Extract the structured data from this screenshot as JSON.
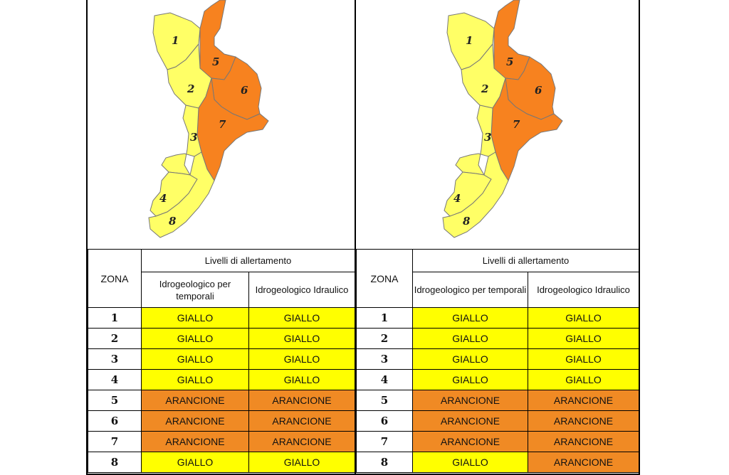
{
  "colors": {
    "giallo": "#ffff00",
    "arancione": "#f08a24",
    "map_yellow": "#ffff66",
    "map_orange": "#f7821f"
  },
  "panels": [
    {
      "header": {
        "zona": "ZONA",
        "livelli": "Livelli di allertamento",
        "col1": "Idrogeologico per temporali",
        "col2": "Idrogeologico Idraulico"
      },
      "map_zones": [
        "1",
        "2",
        "3",
        "4",
        "5",
        "6",
        "7",
        "8"
      ],
      "rows": [
        {
          "zona": "1",
          "temporali": "GIALLO",
          "idraulico": "GIALLO"
        },
        {
          "zona": "2",
          "temporali": "GIALLO",
          "idraulico": "GIALLO"
        },
        {
          "zona": "3",
          "temporali": "GIALLO",
          "idraulico": "GIALLO"
        },
        {
          "zona": "4",
          "temporali": "GIALLO",
          "idraulico": "GIALLO"
        },
        {
          "zona": "5",
          "temporali": "ARANCIONE",
          "idraulico": "ARANCIONE"
        },
        {
          "zona": "6",
          "temporali": "ARANCIONE",
          "idraulico": "ARANCIONE"
        },
        {
          "zona": "7",
          "temporali": "ARANCIONE",
          "idraulico": "ARANCIONE"
        },
        {
          "zona": "8",
          "temporali": "GIALLO",
          "idraulico": "GIALLO"
        }
      ]
    },
    {
      "header": {
        "zona": "ZONA",
        "livelli": "Livelli di allertamento",
        "col1": "Idrogeologico per temporali",
        "col2": "Idrogeologico Idraulico"
      },
      "map_zones": [
        "1",
        "2",
        "3",
        "4",
        "5",
        "6",
        "7",
        "8"
      ],
      "rows": [
        {
          "zona": "1",
          "temporali": "GIALLO",
          "idraulico": "GIALLO"
        },
        {
          "zona": "2",
          "temporali": "GIALLO",
          "idraulico": "GIALLO"
        },
        {
          "zona": "3",
          "temporali": "GIALLO",
          "idraulico": "GIALLO"
        },
        {
          "zona": "4",
          "temporali": "GIALLO",
          "idraulico": "GIALLO"
        },
        {
          "zona": "5",
          "temporali": "ARANCIONE",
          "idraulico": "ARANCIONE"
        },
        {
          "zona": "6",
          "temporali": "ARANCIONE",
          "idraulico": "ARANCIONE"
        },
        {
          "zona": "7",
          "temporali": "ARANCIONE",
          "idraulico": "ARANCIONE"
        },
        {
          "zona": "8",
          "temporali": "GIALLO",
          "idraulico": "ARANCIONE"
        }
      ]
    }
  ]
}
